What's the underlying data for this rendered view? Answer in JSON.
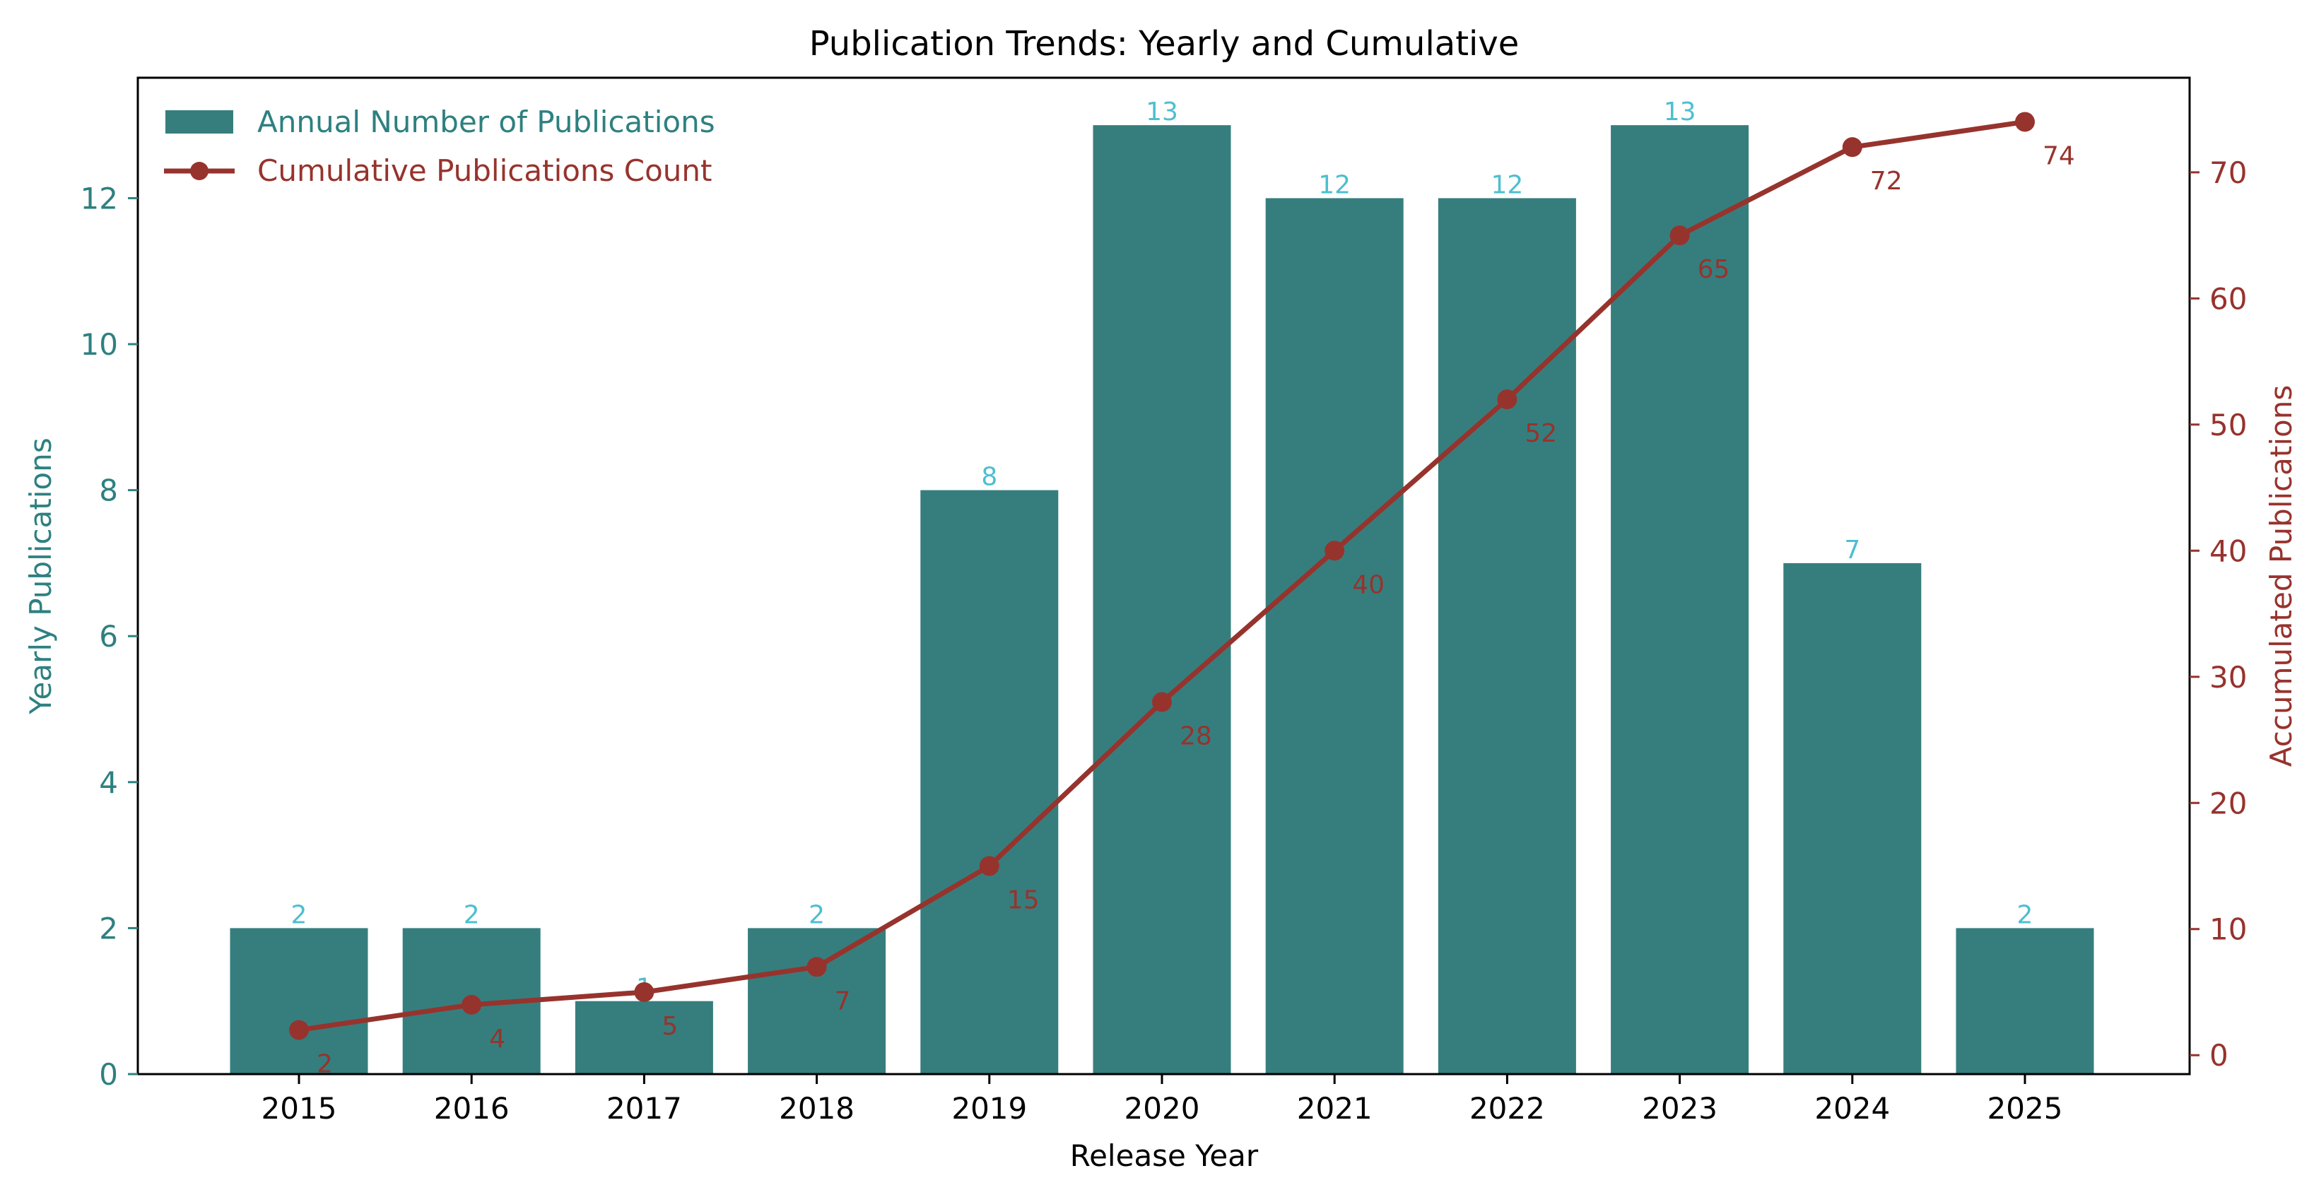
{
  "chart_data": {
    "type": "bar+line",
    "title": "Publication Trends: Yearly and Cumulative",
    "xlabel": "Release Year",
    "ylabel_left": "Yearly Publications",
    "ylabel_right": "Accumulated Publications",
    "categories": [
      "2015",
      "2016",
      "2017",
      "2018",
      "2019",
      "2020",
      "2021",
      "2022",
      "2023",
      "2024",
      "2025"
    ],
    "series": [
      {
        "name": "Annual Number of Publications",
        "kind": "bar",
        "axis": "left",
        "values": [
          2,
          2,
          1,
          2,
          8,
          13,
          12,
          12,
          13,
          7,
          2
        ]
      },
      {
        "name": "Cumulative Publications Count",
        "kind": "line",
        "axis": "right",
        "values": [
          2,
          4,
          5,
          7,
          15,
          28,
          40,
          52,
          65,
          72,
          74
        ]
      }
    ],
    "ylim_left": [
      0,
      13.65
    ],
    "ylim_right": [
      -1.5,
      77.5
    ],
    "yticks_left": [
      0,
      2,
      4,
      6,
      8,
      10,
      12
    ],
    "yticks_right": [
      0,
      10,
      20,
      30,
      40,
      50,
      60,
      70
    ],
    "legend_location": "top-left",
    "grid": false,
    "colors": {
      "bar": "#367e7e",
      "bar_label": "#4dbfcf",
      "line": "#97332d",
      "left_axis": "#2e8080",
      "right_axis": "#97332d",
      "text": "#000000"
    }
  }
}
